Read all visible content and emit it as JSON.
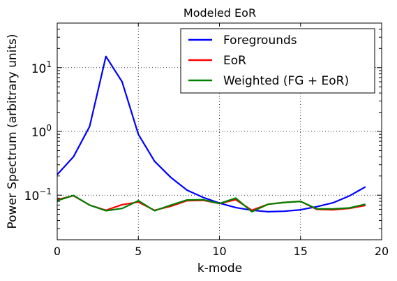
{
  "chart_data": {
    "type": "line",
    "title": "Modeled EoR",
    "xlabel": "k-mode",
    "ylabel": "Power Spectrum (arbitrary units)",
    "xlim": [
      0,
      20
    ],
    "ylim": [
      0.02,
      50
    ],
    "yscale": "log",
    "grid": true,
    "legend_position": "top-right",
    "x_ticks": [
      0,
      5,
      10,
      15,
      20
    ],
    "x_tick_labels": [
      "0",
      "5",
      "10",
      "15",
      "20"
    ],
    "y_ticks": [
      0.1,
      1,
      10
    ],
    "y_tick_labels": [
      {
        "base": "10",
        "exp": "−1"
      },
      {
        "base": "10",
        "exp": "0"
      },
      {
        "base": "10",
        "exp": "1"
      }
    ],
    "x": [
      0,
      1,
      2,
      3,
      4,
      5,
      6,
      7,
      8,
      9,
      10,
      11,
      12,
      13,
      14,
      15,
      16,
      17,
      18,
      19
    ],
    "series": [
      {
        "name": "Foregrounds",
        "color": "#0000ff",
        "values": [
          0.21,
          0.4,
          1.2,
          15.0,
          6.0,
          0.9,
          0.34,
          0.19,
          0.12,
          0.092,
          0.075,
          0.064,
          0.058,
          0.055,
          0.056,
          0.059,
          0.066,
          0.076,
          0.097,
          0.135
        ]
      },
      {
        "name": "EoR",
        "color": "#ff0000",
        "values": [
          0.085,
          0.098,
          0.07,
          0.058,
          0.071,
          0.078,
          0.058,
          0.067,
          0.082,
          0.083,
          0.074,
          0.085,
          0.058,
          0.072,
          0.077,
          0.08,
          0.06,
          0.059,
          0.062,
          0.069
        ]
      },
      {
        "name": "Weighted (FG + EoR)",
        "color": "#008000",
        "values": [
          0.082,
          0.099,
          0.07,
          0.057,
          0.062,
          0.082,
          0.057,
          0.07,
          0.084,
          0.085,
          0.074,
          0.09,
          0.055,
          0.072,
          0.077,
          0.08,
          0.061,
          0.061,
          0.063,
          0.072
        ]
      }
    ]
  }
}
